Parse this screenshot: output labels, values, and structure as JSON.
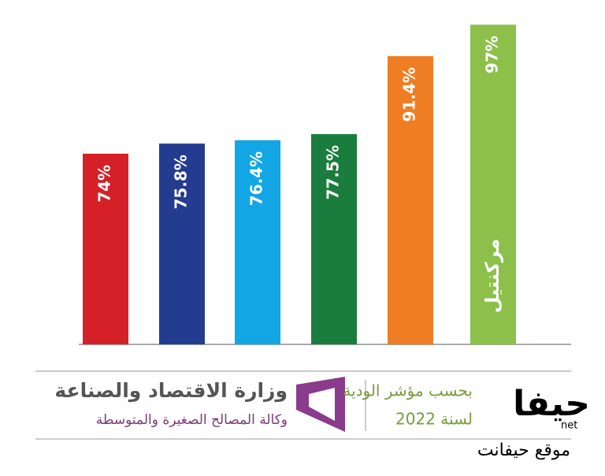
{
  "chart_data": {
    "type": "bar",
    "values": [
      74,
      75.8,
      76.4,
      77.5,
      91.4,
      97
    ],
    "value_labels": [
      "74%",
      "75.8%",
      "76.4%",
      "77.5%",
      "91.4%",
      "97%"
    ],
    "colors": [
      "#d52027",
      "#243c8f",
      "#12a7e4",
      "#1a7d3e",
      "#ef7d24",
      "#8cc04b"
    ],
    "ylim": [
      40,
      100
    ],
    "bar_logo": "مركنتيل",
    "footer": {
      "ministry": "وزارة الاقتصاد والصناعة",
      "agency": "وكالة المصالح الصغيرة والمتوسطة",
      "index": "بحسب مؤشر الودية",
      "year": "لسنة 2022"
    },
    "watermark": {
      "brand": "حيفا",
      "net": "net",
      "site": "موقع حيفانت"
    }
  }
}
